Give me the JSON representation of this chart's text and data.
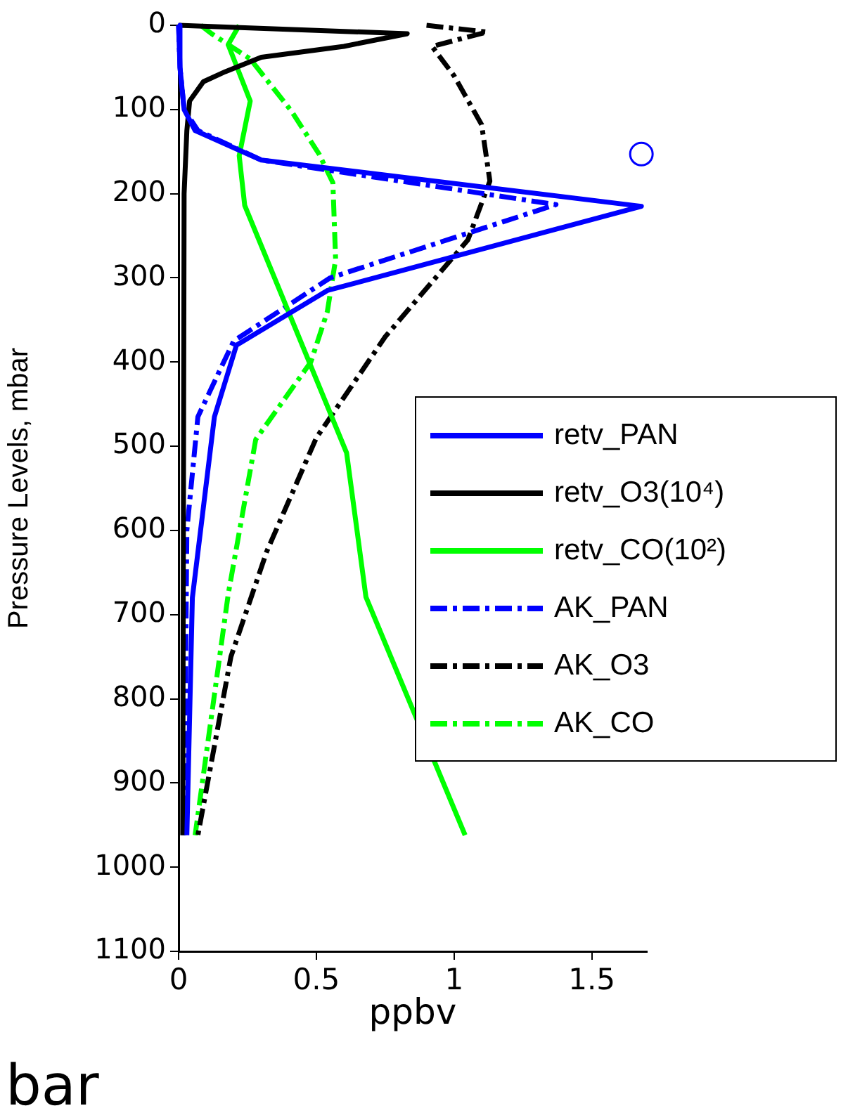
{
  "chart_data": {
    "type": "line",
    "xlabel": "ppbv",
    "ylabel": "Pressure Levels, mbar",
    "xlim": [
      0,
      1.7
    ],
    "xticks": [
      0,
      0.5,
      1,
      1.5
    ],
    "ylim": [
      1100,
      0
    ],
    "yticks": [
      0,
      100,
      200,
      300,
      400,
      500,
      600,
      700,
      800,
      900,
      1000,
      1100
    ],
    "grid": false,
    "legend": "right",
    "marker": "none",
    "annotations": [
      "bar"
    ],
    "series": [
      {
        "name": "retv_PAN",
        "color": "#0000ff",
        "line_style": "solid",
        "x": [
          0,
          0.005,
          0.02,
          0.06,
          0.3,
          1.68,
          0.54,
          0.21,
          0.13,
          0.05,
          0.03
        ],
        "values": [
          0,
          50,
          100,
          125,
          160,
          215,
          315,
          380,
          465,
          680,
          962
        ]
      },
      {
        "name": "retv_O3(10⁴)",
        "color": "#000000",
        "line_style": "solid",
        "x": [
          0,
          0.83,
          0.6,
          0.3,
          0.17,
          0.09,
          0.04,
          0.03,
          0.02,
          0.015
        ],
        "values": [
          0,
          10,
          25,
          38,
          55,
          67,
          90,
          125,
          200,
          962
        ]
      },
      {
        "name": "retv_CO(10²)",
        "color": "#00ff00",
        "line_style": "solid",
        "x": [
          0.22,
          0.18,
          0.26,
          0.22,
          0.24,
          0.61,
          0.68,
          1.04
        ],
        "values": [
          0,
          23,
          90,
          155,
          214,
          508,
          679,
          962
        ]
      },
      {
        "name": "AK_PAN",
        "color": "#0000ff",
        "line_style": "dashed",
        "x": [
          0,
          0.005,
          0.02,
          0.07,
          0.3,
          1.37,
          0.55,
          0.2,
          0.07,
          0.03,
          0.02
        ],
        "values": [
          0,
          50,
          100,
          125,
          160,
          213,
          300,
          375,
          465,
          600,
          962
        ]
      },
      {
        "name": "AK_O3",
        "color": "#000000",
        "line_style": "dashed",
        "x": [
          0.9,
          1.12,
          0.92,
          1.0,
          1.1,
          1.13,
          1.05,
          0.75,
          0.5,
          0.32,
          0.19,
          0.07
        ],
        "values": [
          0,
          8,
          25,
          60,
          118,
          185,
          255,
          370,
          490,
          625,
          750,
          962
        ]
      },
      {
        "name": "AK_CO",
        "color": "#00ff00",
        "line_style": "dashed",
        "x": [
          0.08,
          0.12,
          0.26,
          0.41,
          0.51,
          0.56,
          0.57,
          0.54,
          0.48,
          0.28,
          0.18,
          0.06
        ],
        "values": [
          0,
          10,
          40,
          102,
          153,
          187,
          278,
          340,
          400,
          492,
          676,
          962
        ]
      },
      {
        "type": "scatter",
        "marker": "circle",
        "color": "#0000ff",
        "x": [
          1.68
        ],
        "values": [
          153
        ]
      }
    ]
  }
}
